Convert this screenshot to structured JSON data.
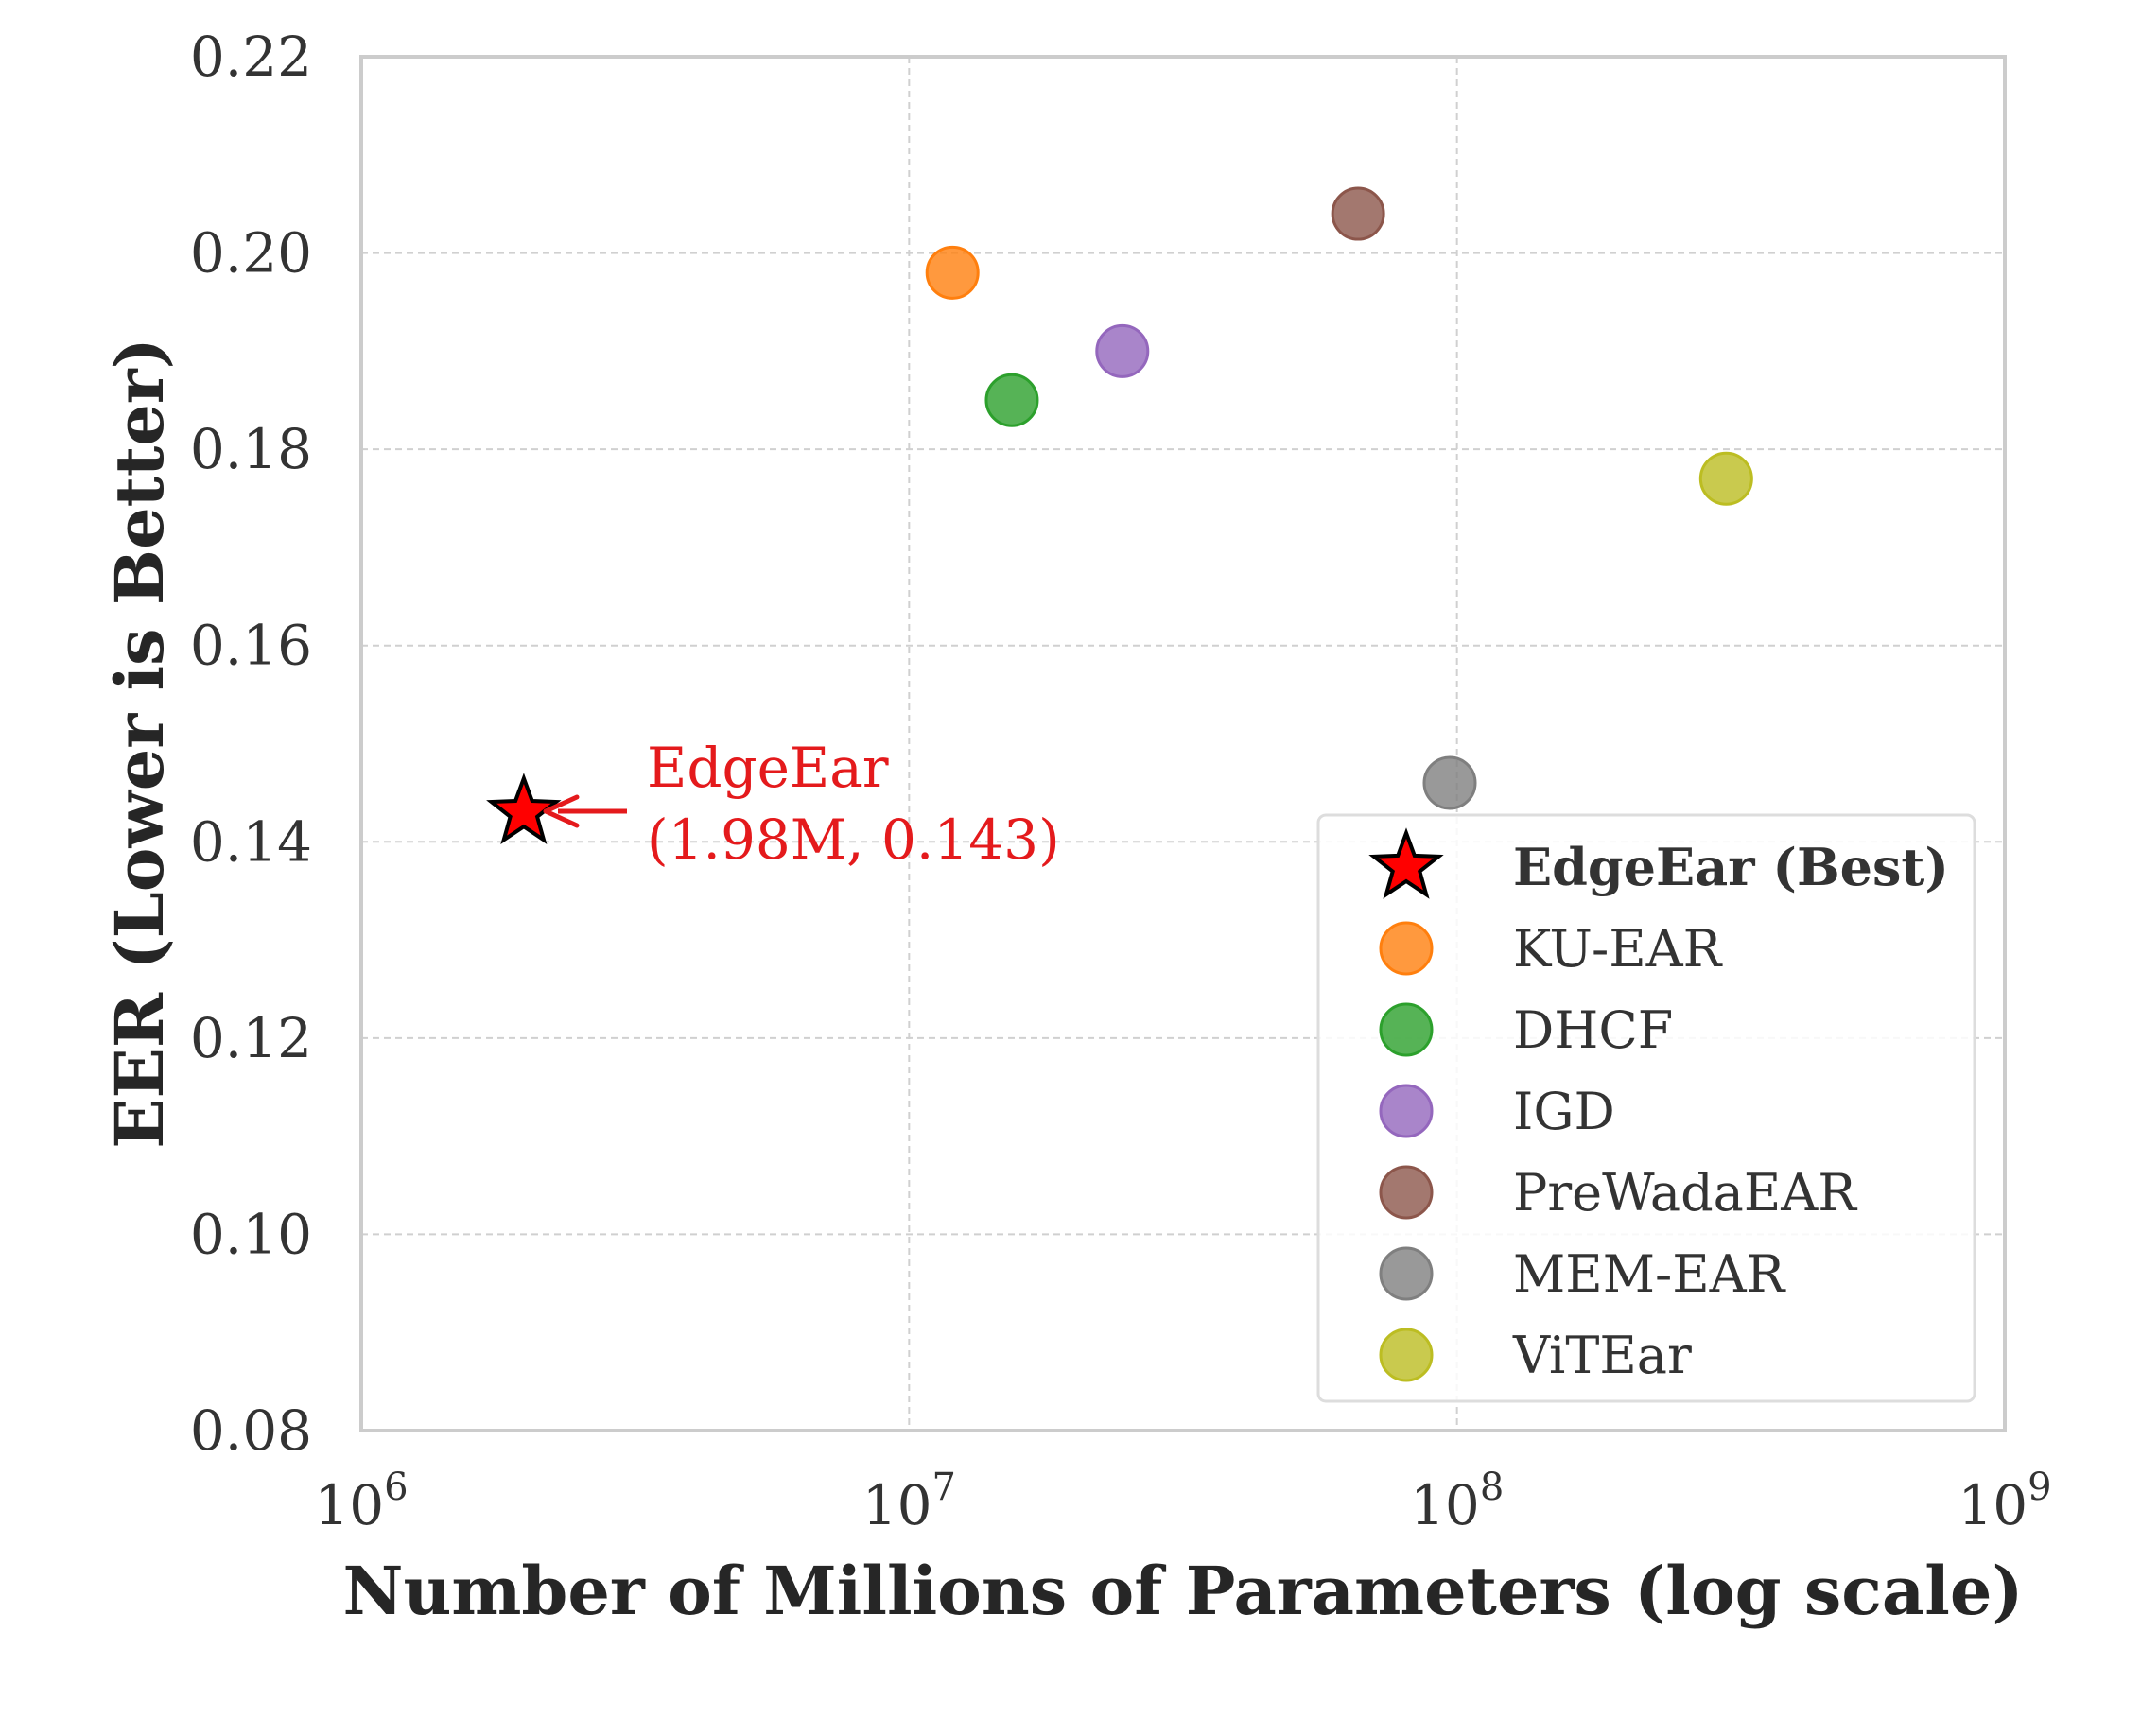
{
  "chart_data": {
    "type": "scatter",
    "title": "",
    "xlabel": "Number of Millions of Parameters (log scale)",
    "ylabel": "EER (Lower is Better)",
    "xscale": "log",
    "xlim": [
      1000000,
      1000000000
    ],
    "ylim": [
      0.08,
      0.22
    ],
    "xticks": [
      {
        "value": 1000000,
        "base": "10",
        "exp": "6"
      },
      {
        "value": 10000000,
        "base": "10",
        "exp": "7"
      },
      {
        "value": 100000000,
        "base": "10",
        "exp": "8"
      },
      {
        "value": 1000000000,
        "base": "10",
        "exp": "9"
      }
    ],
    "yticks": [
      "0.08",
      "0.10",
      "0.12",
      "0.14",
      "0.16",
      "0.18",
      "0.20",
      "0.22"
    ],
    "grid": true,
    "legend_position": "lower-right",
    "series": [
      {
        "name": "EdgeEar (Best)",
        "marker": "star",
        "color": "#ff0000",
        "x": 1980000,
        "y": 0.143
      },
      {
        "name": "KU-EAR",
        "marker": "circle",
        "color": "#ff7f0e",
        "x": 12000000,
        "y": 0.198
      },
      {
        "name": "DHCF",
        "marker": "circle",
        "color": "#2ca02c",
        "x": 15400000,
        "y": 0.185
      },
      {
        "name": "IGD",
        "marker": "circle",
        "color": "#9467bd",
        "x": 24500000,
        "y": 0.19
      },
      {
        "name": "PreWadaEAR",
        "marker": "circle",
        "color": "#8c564b",
        "x": 66000000,
        "y": 0.204
      },
      {
        "name": "MEM-EAR",
        "marker": "circle",
        "color": "#7f7f7f",
        "x": 97000000,
        "y": 0.146
      },
      {
        "name": "ViTEar",
        "marker": "circle",
        "color": "#bcbd22",
        "x": 310000000,
        "y": 0.177
      }
    ],
    "annotation": {
      "lines": [
        "EdgeEar",
        "(1.98M, 0.143)"
      ],
      "color": "#e41a1c",
      "target_series": 0
    }
  }
}
